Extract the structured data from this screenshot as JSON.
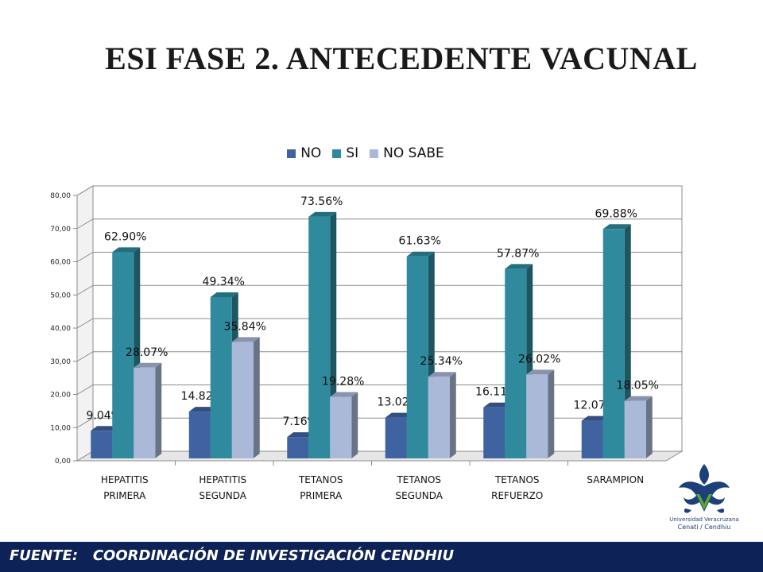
{
  "title": "ESI FASE 2. ANTECEDENTE VACUNAL",
  "footer": "FUENTE:   COORDINACIÓN DE INVESTIGACIÓN CENDHIU",
  "logo": {
    "caption_line1": "Universidad Veracruzana",
    "caption_line2": "Cenati / Cendhiu"
  },
  "colors": {
    "NO": "#3e63a0",
    "SI": "#2e8a9c",
    "NO SABE": "#aab9d8",
    "footer": "#0d2257"
  },
  "chart_data": {
    "type": "bar",
    "categories": [
      [
        "HEPATITIS",
        "PRIMERA"
      ],
      [
        "HEPATITIS",
        "SEGUNDA"
      ],
      [
        "TETANOS",
        "PRIMERA"
      ],
      [
        "TETANOS",
        "SEGUNDA"
      ],
      [
        "TETANOS",
        "REFUERZO"
      ],
      [
        "SARAMPION"
      ]
    ],
    "series": [
      {
        "name": "NO",
        "values": [
          9.04,
          14.82,
          7.16,
          13.02,
          16.11,
          12.07
        ],
        "labels": [
          "9.04%",
          "14.82%",
          "7.16%",
          "13.02%",
          "16.11%",
          "12.07%"
        ]
      },
      {
        "name": "SI",
        "values": [
          62.9,
          49.34,
          73.56,
          61.63,
          57.87,
          69.88
        ],
        "labels": [
          "62.90%",
          "49.34%",
          "73.56%",
          "61.63%",
          "57.87%",
          "69.88%"
        ]
      },
      {
        "name": "NO SABE",
        "values": [
          28.07,
          35.84,
          19.28,
          25.34,
          26.02,
          18.05
        ],
        "labels": [
          "28.07%",
          "35.84%",
          "19.28%",
          "25.34%",
          "26.02%",
          "18.05%"
        ]
      }
    ],
    "yticks": [
      "0,00",
      "10,00",
      "20,00",
      "30,00",
      "40,00",
      "50,00",
      "60,00",
      "70,00",
      "80,00"
    ],
    "ylim": [
      0,
      80
    ],
    "grid": true,
    "legend_position": "top",
    "three_d": true
  }
}
